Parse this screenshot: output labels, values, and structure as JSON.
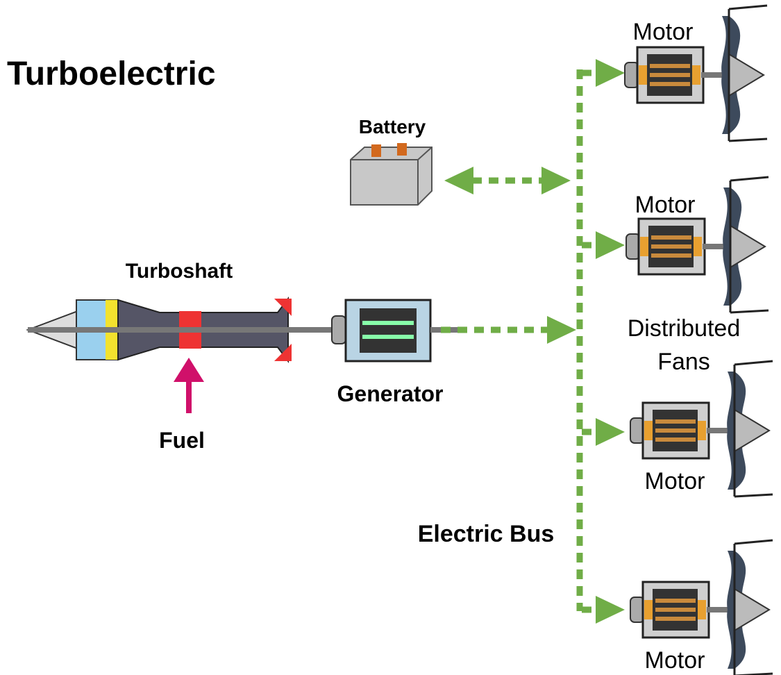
{
  "title": "Turboelectric",
  "labels": {
    "battery": "Battery",
    "turboshaft": "Turboshaft",
    "generator": "Generator",
    "fuel": "Fuel",
    "electric_bus": "Electric Bus",
    "distributed_fans": [
      "Distributed",
      "Fans"
    ]
  },
  "motors": [
    "Motor",
    "Motor",
    "Motor",
    "Motor"
  ]
}
